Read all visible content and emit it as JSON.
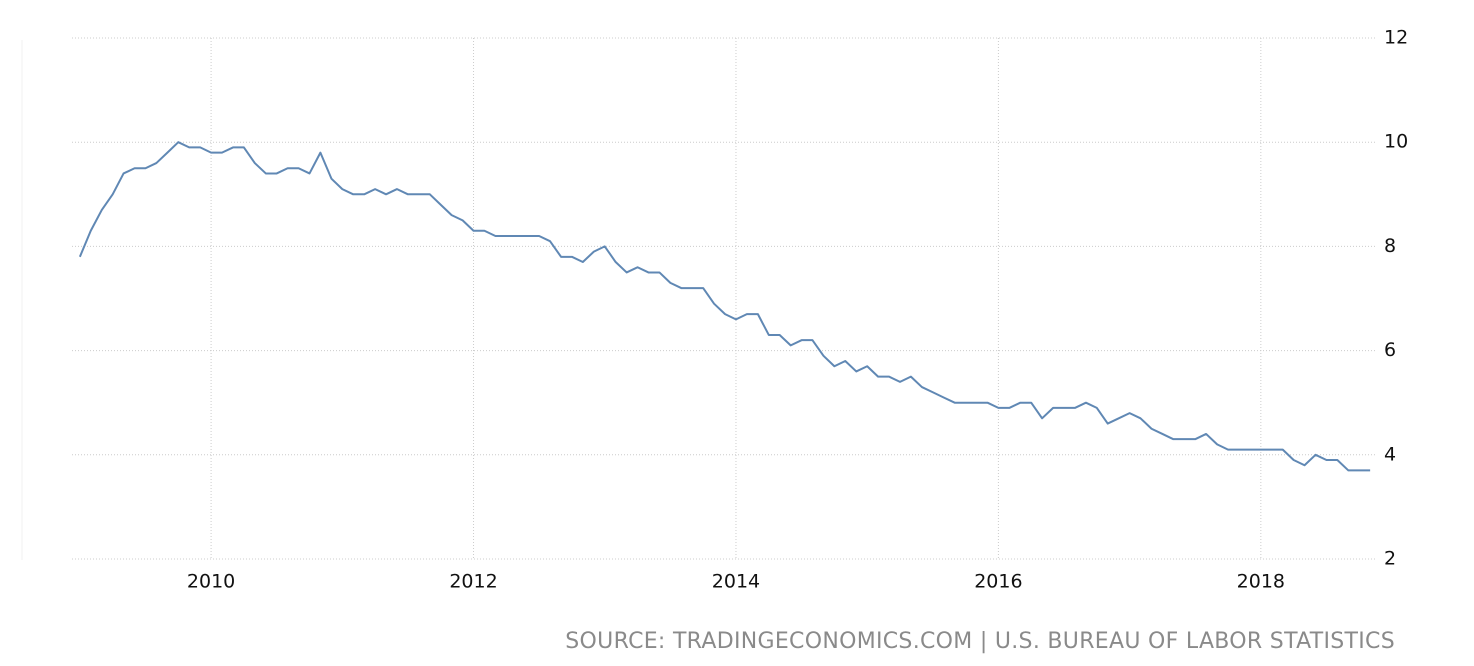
{
  "chart_data": {
    "type": "line",
    "source": "SOURCE: TRADINGECONOMICS.COM | U.S. BUREAU OF LABOR STATISTICS",
    "x": [
      2009,
      2009.083,
      2009.167,
      2009.25,
      2009.333,
      2009.417,
      2009.5,
      2009.583,
      2009.667,
      2009.75,
      2009.833,
      2009.917,
      2010,
      2010.083,
      2010.167,
      2010.25,
      2010.333,
      2010.417,
      2010.5,
      2010.583,
      2010.667,
      2010.75,
      2010.833,
      2010.917,
      2011,
      2011.083,
      2011.167,
      2011.25,
      2011.333,
      2011.417,
      2011.5,
      2011.583,
      2011.667,
      2011.75,
      2011.833,
      2011.917,
      2012,
      2012.083,
      2012.167,
      2012.25,
      2012.333,
      2012.417,
      2012.5,
      2012.583,
      2012.667,
      2012.75,
      2012.833,
      2012.917,
      2013,
      2013.083,
      2013.167,
      2013.25,
      2013.333,
      2013.417,
      2013.5,
      2013.583,
      2013.667,
      2013.75,
      2013.833,
      2013.917,
      2014,
      2014.083,
      2014.167,
      2014.25,
      2014.333,
      2014.417,
      2014.5,
      2014.583,
      2014.667,
      2014.75,
      2014.833,
      2014.917,
      2015,
      2015.083,
      2015.167,
      2015.25,
      2015.333,
      2015.417,
      2015.5,
      2015.583,
      2015.667,
      2015.75,
      2015.833,
      2015.917,
      2016,
      2016.083,
      2016.167,
      2016.25,
      2016.333,
      2016.417,
      2016.5,
      2016.583,
      2016.667,
      2016.75,
      2016.833,
      2016.917,
      2017,
      2017.083,
      2017.167,
      2017.25,
      2017.333,
      2017.417,
      2017.5,
      2017.583,
      2017.667,
      2017.75,
      2017.833,
      2017.917,
      2018,
      2018.083,
      2018.167,
      2018.25,
      2018.333,
      2018.417,
      2018.5,
      2018.583,
      2018.667,
      2018.75,
      2018.833
    ],
    "series": [
      {
        "color": "#6088b4",
        "values": [
          7.8,
          8.3,
          8.7,
          9.0,
          9.4,
          9.5,
          9.5,
          9.6,
          9.8,
          10.0,
          9.9,
          9.9,
          9.8,
          9.8,
          9.9,
          9.9,
          9.6,
          9.4,
          9.4,
          9.5,
          9.5,
          9.4,
          9.8,
          9.3,
          9.1,
          9.0,
          9.0,
          9.1,
          9.0,
          9.1,
          9.0,
          9.0,
          9.0,
          8.8,
          8.6,
          8.5,
          8.3,
          8.3,
          8.2,
          8.2,
          8.2,
          8.2,
          8.2,
          8.1,
          7.8,
          7.8,
          7.7,
          7.9,
          8.0,
          7.7,
          7.5,
          7.6,
          7.5,
          7.5,
          7.3,
          7.2,
          7.2,
          7.2,
          6.9,
          6.7,
          6.6,
          6.7,
          6.7,
          6.3,
          6.3,
          6.1,
          6.2,
          6.2,
          5.9,
          5.7,
          5.8,
          5.6,
          5.7,
          5.5,
          5.5,
          5.4,
          5.5,
          5.3,
          5.2,
          5.1,
          5.0,
          5.0,
          5.0,
          5.0,
          4.9,
          4.9,
          5.0,
          5.0,
          4.7,
          4.9,
          4.9,
          4.9,
          5.0,
          4.9,
          4.6,
          4.7,
          4.8,
          4.7,
          4.5,
          4.4,
          4.3,
          4.3,
          4.3,
          4.4,
          4.2,
          4.1,
          4.1,
          4.1,
          4.1,
          4.1,
          4.1,
          3.9,
          3.8,
          4.0,
          3.9,
          3.9,
          3.7,
          3.7,
          3.7
        ]
      }
    ],
    "xlim": [
      2008.94,
      2018.87
    ],
    "xticks": [
      2010,
      2012,
      2014,
      2016,
      2018
    ],
    "ylim": [
      2,
      12
    ],
    "yticks": [
      2,
      4,
      6,
      8,
      10,
      12
    ],
    "grid": true
  }
}
